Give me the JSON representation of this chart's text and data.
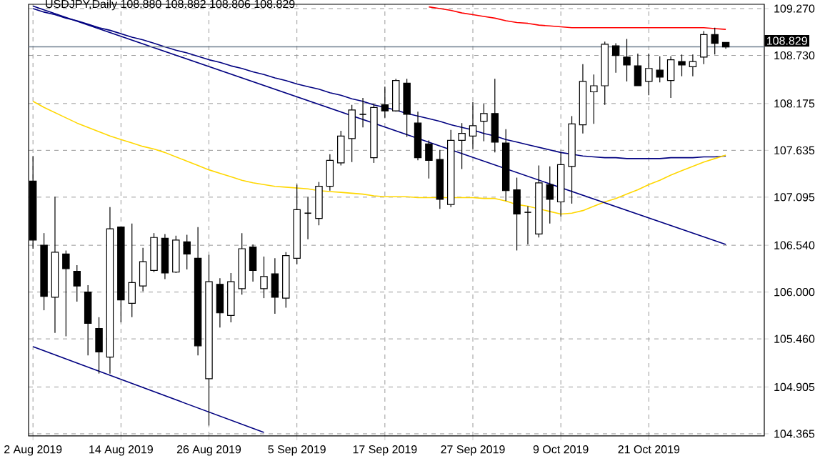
{
  "chart_data": {
    "type": "candlestick",
    "title": "USDJPY,Daily  108.880 108.882 108.806 108.829",
    "categories": [
      "2 Aug 2019",
      null,
      null,
      null,
      null,
      null,
      null,
      null,
      "14 Aug 2019",
      null,
      null,
      null,
      null,
      null,
      null,
      null,
      "26 Aug 2019",
      null,
      null,
      null,
      null,
      null,
      null,
      null,
      "5 Sep 2019",
      null,
      null,
      null,
      null,
      null,
      null,
      null,
      "17 Sep 2019",
      null,
      null,
      null,
      null,
      null,
      null,
      null,
      "27 Sep 2019",
      null,
      null,
      null,
      null,
      null,
      null,
      null,
      "9 Oct 2019",
      null,
      null,
      null,
      null,
      null,
      null,
      null,
      "21 Oct 2019",
      null,
      null,
      null,
      null,
      null,
      null,
      null
    ],
    "ohlc": [
      [
        107.28,
        107.57,
        106.5,
        106.6
      ],
      [
        106.54,
        106.68,
        105.79,
        105.95
      ],
      [
        105.94,
        107.1,
        105.53,
        106.46
      ],
      [
        106.44,
        106.48,
        105.49,
        106.27
      ],
      [
        106.24,
        106.31,
        105.89,
        106.07
      ],
      [
        106.0,
        106.08,
        105.27,
        105.64
      ],
      [
        105.58,
        105.71,
        105.06,
        105.31
      ],
      [
        105.25,
        106.98,
        105.06,
        106.73
      ],
      [
        106.75,
        106.75,
        105.65,
        105.91
      ],
      [
        105.87,
        106.79,
        105.71,
        106.11
      ],
      [
        106.07,
        106.51,
        106.01,
        106.35
      ],
      [
        106.25,
        106.68,
        106.23,
        106.63
      ],
      [
        106.62,
        106.67,
        106.15,
        106.22
      ],
      [
        106.23,
        106.65,
        106.22,
        106.6
      ],
      [
        106.58,
        106.66,
        106.26,
        106.44
      ],
      [
        106.39,
        106.75,
        105.27,
        105.38
      ],
      [
        105.0,
        106.43,
        104.46,
        106.12
      ],
      [
        106.09,
        106.16,
        105.59,
        105.76
      ],
      [
        105.73,
        106.22,
        105.65,
        106.12
      ],
      [
        106.04,
        106.68,
        105.97,
        106.5
      ],
      [
        106.52,
        106.55,
        106.12,
        106.25
      ],
      [
        106.04,
        106.41,
        105.93,
        106.18
      ],
      [
        106.21,
        106.39,
        105.75,
        105.94
      ],
      [
        105.93,
        106.46,
        105.82,
        106.42
      ],
      [
        106.39,
        107.24,
        106.32,
        106.95
      ],
      [
        106.91,
        107.1,
        106.61,
        106.91
      ],
      [
        106.85,
        107.27,
        106.77,
        107.22
      ],
      [
        107.22,
        107.59,
        107.17,
        107.52
      ],
      [
        107.49,
        107.86,
        107.46,
        107.8
      ],
      [
        107.77,
        108.16,
        107.5,
        108.1
      ],
      [
        108.05,
        108.24,
        107.9,
        108.05
      ],
      [
        107.55,
        108.17,
        107.49,
        108.13
      ],
      [
        108.16,
        108.37,
        108.01,
        108.09
      ],
      [
        108.09,
        108.46,
        108.08,
        108.44
      ],
      [
        108.41,
        108.46,
        107.79,
        108.05
      ],
      [
        107.95,
        108.08,
        107.52,
        107.55
      ],
      [
        107.71,
        107.75,
        107.31,
        107.52
      ],
      [
        107.53,
        107.64,
        106.96,
        107.07
      ],
      [
        107.01,
        107.87,
        106.98,
        107.75
      ],
      [
        107.75,
        107.95,
        107.42,
        107.83
      ],
      [
        107.8,
        108.19,
        107.65,
        107.92
      ],
      [
        107.97,
        108.17,
        107.74,
        108.06
      ],
      [
        108.06,
        108.46,
        107.61,
        107.73
      ],
      [
        107.72,
        107.88,
        107.05,
        107.17
      ],
      [
        107.18,
        107.32,
        106.48,
        106.9
      ],
      [
        106.92,
        106.99,
        106.55,
        106.92
      ],
      [
        106.67,
        107.46,
        106.63,
        107.26
      ],
      [
        107.24,
        107.45,
        106.79,
        107.07
      ],
      [
        107.04,
        107.61,
        106.87,
        107.47
      ],
      [
        107.45,
        108.03,
        107.02,
        107.94
      ],
      [
        107.93,
        108.63,
        107.83,
        108.43
      ],
      [
        108.31,
        108.51,
        107.94,
        108.38
      ],
      [
        108.38,
        108.89,
        108.16,
        108.86
      ],
      [
        108.84,
        108.87,
        108.53,
        108.73
      ],
      [
        108.71,
        108.92,
        108.43,
        108.62
      ],
      [
        108.61,
        108.75,
        108.38,
        108.38
      ],
      [
        108.43,
        108.75,
        108.27,
        108.58
      ],
      [
        108.56,
        108.72,
        108.42,
        108.48
      ],
      [
        108.44,
        108.72,
        108.24,
        108.68
      ],
      [
        108.66,
        108.74,
        108.49,
        108.62
      ],
      [
        108.6,
        108.74,
        108.49,
        108.66
      ],
      [
        108.71,
        109.01,
        108.63,
        108.97
      ],
      [
        108.97,
        109.05,
        108.74,
        108.87
      ],
      [
        108.88,
        108.882,
        108.806,
        108.829
      ]
    ],
    "series": [
      {
        "type": "line",
        "color": "#ff0000",
        "values": [
          null,
          null,
          null,
          null,
          null,
          null,
          null,
          null,
          null,
          null,
          null,
          null,
          null,
          null,
          null,
          null,
          null,
          null,
          null,
          null,
          null,
          null,
          null,
          null,
          null,
          null,
          null,
          null,
          null,
          null,
          null,
          null,
          null,
          null,
          null,
          null,
          109.29,
          109.27,
          109.25,
          109.22,
          109.2,
          109.18,
          109.16,
          109.13,
          109.11,
          109.1,
          109.08,
          109.07,
          109.06,
          109.05,
          109.05,
          109.05,
          109.05,
          109.05,
          109.05,
          109.05,
          109.05,
          109.05,
          109.05,
          109.05,
          109.05,
          109.05,
          109.04,
          109.03
        ]
      },
      {
        "type": "line",
        "color": "#000080",
        "values": [
          109.27,
          109.23,
          109.2,
          109.16,
          109.13,
          109.09,
          109.05,
          109.02,
          108.98,
          108.94,
          108.91,
          108.87,
          108.83,
          108.79,
          108.76,
          108.72,
          108.68,
          108.65,
          108.61,
          108.58,
          108.54,
          108.51,
          108.47,
          108.44,
          108.4,
          108.37,
          108.34,
          108.3,
          108.27,
          108.23,
          108.2,
          108.16,
          108.13,
          108.1,
          108.06,
          108.03,
          108.0,
          107.97,
          107.93,
          107.9,
          107.87,
          107.83,
          107.8,
          107.76,
          107.73,
          107.7,
          107.67,
          107.64,
          107.61,
          107.59,
          107.57,
          107.56,
          107.55,
          107.55,
          107.54,
          107.54,
          107.54,
          107.54,
          107.55,
          107.55,
          107.55,
          107.56,
          107.56,
          107.57
        ]
      },
      {
        "type": "line",
        "color": "#ffd700",
        "values": [
          108.2,
          108.13,
          108.07,
          108.01,
          107.95,
          107.9,
          107.85,
          107.8,
          107.76,
          107.72,
          107.68,
          107.65,
          107.61,
          107.56,
          107.51,
          107.46,
          107.41,
          107.37,
          107.33,
          107.29,
          107.26,
          107.24,
          107.22,
          107.21,
          107.2,
          107.19,
          107.17,
          107.16,
          107.15,
          107.14,
          107.13,
          107.11,
          107.1,
          107.1,
          107.1,
          107.09,
          107.09,
          107.09,
          107.09,
          107.09,
          107.09,
          107.08,
          107.08,
          107.05,
          107.01,
          106.99,
          106.96,
          106.93,
          106.9,
          106.91,
          106.94,
          106.99,
          107.04,
          107.08,
          107.13,
          107.18,
          107.24,
          107.29,
          107.35,
          107.4,
          107.45,
          107.5,
          107.54,
          107.58
        ]
      },
      {
        "type": "line",
        "color": "#000080",
        "values": [
          109.3,
          null,
          null,
          null,
          null,
          null,
          null,
          null,
          null,
          null,
          null,
          null,
          null,
          null,
          null,
          null,
          null,
          null,
          null,
          null,
          null,
          null,
          null,
          null,
          null,
          null,
          null,
          null,
          null,
          null,
          null,
          null,
          null,
          null,
          null,
          null,
          null,
          null,
          null,
          null,
          null,
          null,
          null,
          null,
          null,
          null,
          null,
          null,
          null,
          null,
          null,
          null,
          null,
          null,
          null,
          null,
          null,
          null,
          null,
          null,
          null,
          null,
          null,
          106.55
        ]
      },
      {
        "type": "line",
        "color": "#000080",
        "values": [
          105.37,
          null,
          null,
          null,
          null,
          null,
          null,
          null,
          null,
          null,
          null,
          null,
          null,
          null,
          null,
          null,
          null,
          null,
          null,
          null,
          null,
          104.38,
          null,
          null,
          null,
          null,
          null,
          null,
          null,
          null,
          null,
          null,
          null,
          null,
          null,
          null,
          null,
          null,
          null,
          null,
          null,
          null,
          null,
          null,
          null,
          null,
          null,
          null,
          null,
          null,
          null,
          null,
          null,
          null,
          null,
          null,
          null,
          null,
          null,
          null,
          null,
          null,
          null,
          null
        ]
      }
    ],
    "ylim": [
      104.34,
      109.32
    ],
    "yticks": [
      {
        "value": 109.27,
        "label": "109.270"
      },
      {
        "value": 108.73,
        "label": "108.730"
      },
      108.175,
      107.635,
      107.095,
      {
        "value": 106.54,
        "label": "106.540"
      },
      {
        "value": 106.0,
        "label": "106.000"
      },
      {
        "value": 105.46,
        "label": "105.460"
      },
      104.905,
      104.365
    ],
    "grid": true,
    "ref_lines": [
      {
        "axis": "y",
        "value": 108.829,
        "label": "108.829",
        "color": "#708090"
      }
    ]
  }
}
